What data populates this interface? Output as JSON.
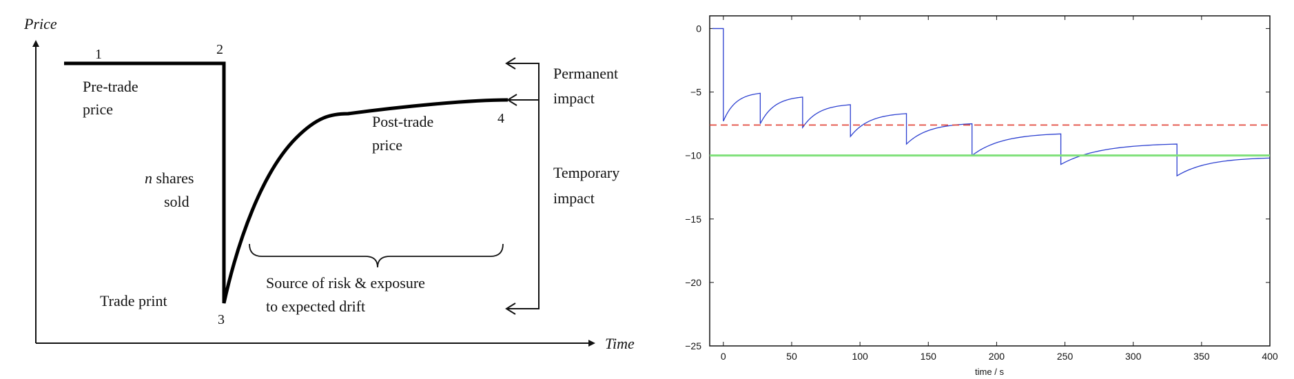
{
  "diagram": {
    "y_axis_label": "Price",
    "x_axis_label": "Time",
    "point_labels": [
      "1",
      "2",
      "3",
      "4"
    ],
    "pre_trade_price": [
      "Pre-trade",
      "price"
    ],
    "post_trade_price": [
      "Post-trade",
      "price"
    ],
    "shares_sold": [
      "n",
      " shares",
      "sold"
    ],
    "trade_print": "Trade print",
    "risk_note": [
      "Source of risk & exposure",
      "to expected drift"
    ],
    "permanent_impact": [
      "Permanent",
      "impact"
    ],
    "temporary_impact": [
      "Temporary",
      "impact"
    ]
  },
  "chart_data": {
    "type": "line",
    "title": "",
    "xlabel": "time / s",
    "ylabel": "",
    "xlim": [
      -10,
      400
    ],
    "ylim": [
      -25,
      1
    ],
    "xticks": [
      0,
      50,
      100,
      150,
      200,
      250,
      300,
      350,
      400
    ],
    "yticks": [
      0,
      -5,
      -10,
      -15,
      -20,
      -25
    ],
    "grid": false,
    "legend": "none",
    "series": [
      {
        "style": "solid",
        "color": "#2b3fd0",
        "x": [
          -8,
          0,
          0,
          27,
          27,
          58,
          58,
          93,
          93,
          134,
          134,
          182,
          182,
          247,
          247,
          332,
          332,
          400
        ],
        "y": [
          0,
          0,
          -7.3,
          -5.1,
          -7.5,
          -5.4,
          -7.8,
          -6.0,
          -8.5,
          -6.7,
          -9.1,
          -7.5,
          -10.0,
          -8.3,
          -10.7,
          -9.1,
          -11.6,
          -10.2
        ],
        "segments": [
          {
            "x0": 0,
            "x1": 27,
            "start": -7.3,
            "end": -5.1
          },
          {
            "x0": 27,
            "x1": 58,
            "start": -7.5,
            "end": -5.4
          },
          {
            "x0": 58,
            "x1": 93,
            "start": -7.8,
            "end": -6.0
          },
          {
            "x0": 93,
            "x1": 134,
            "start": -8.5,
            "end": -6.7
          },
          {
            "x0": 134,
            "x1": 182,
            "start": -9.1,
            "end": -7.5
          },
          {
            "x0": 182,
            "x1": 247,
            "start": -10.0,
            "end": -8.3
          },
          {
            "x0": 247,
            "x1": 332,
            "start": -10.7,
            "end": -9.1
          },
          {
            "x0": 332,
            "x1": 400,
            "start": -11.6,
            "end": -10.2
          }
        ]
      },
      {
        "style": "dashed",
        "color": "#e03a2e",
        "x": [
          -10,
          400
        ],
        "y": [
          -7.6,
          -7.6
        ]
      },
      {
        "style": "solid-thick",
        "color": "#7fe07a",
        "x": [
          -10,
          400
        ],
        "y": [
          -10.0,
          -10.0
        ]
      }
    ]
  }
}
